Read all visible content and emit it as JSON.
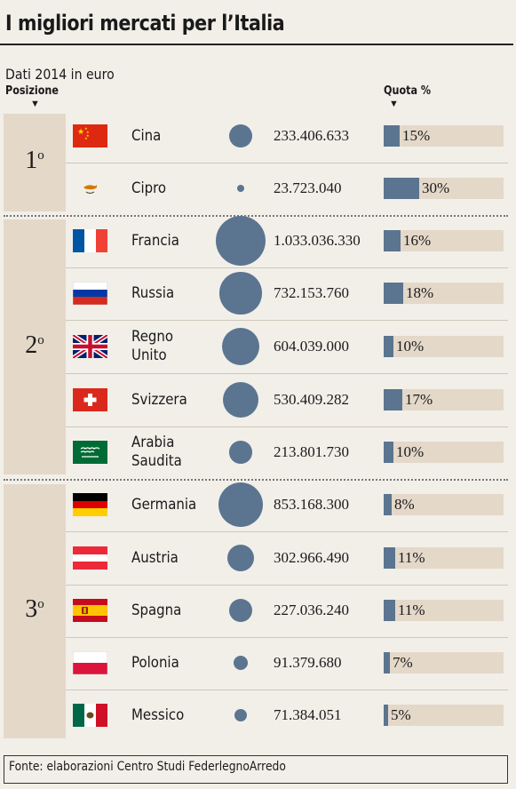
{
  "title": "I migliori mercati per l’Italia",
  "subtitle": "Dati 2014 in euro",
  "headers": {
    "position": "Posizione",
    "share": "Quota %",
    "arrow": "▼"
  },
  "footer": "Fonte: elaborazioni Centro Studi FederlegnoArredo",
  "colors": {
    "accent": "#5b7590",
    "panel": "#e4d8c9",
    "background": "#f2efe9"
  },
  "groups": [
    {
      "rank": "1",
      "ordinal": "o"
    },
    {
      "rank": "2",
      "ordinal": "o"
    },
    {
      "rank": "3",
      "ordinal": "o"
    }
  ],
  "chart_data": {
    "type": "table",
    "title": "I migliori mercati per l’Italia",
    "subtitle": "Dati 2014 in euro",
    "rows": [
      {
        "group": 1,
        "country": "Cina",
        "flag": "china-flag",
        "value": 233406633,
        "value_label": "233.406.633",
        "share": 15,
        "share_label": "15%"
      },
      {
        "group": 1,
        "country": "Cipro",
        "flag": "cyprus-flag",
        "value": 23723040,
        "value_label": "23.723.040",
        "share": 30,
        "share_label": "30%"
      },
      {
        "group": 2,
        "country": "Francia",
        "flag": "france-flag",
        "value": 1033036330,
        "value_label": "1.033.036.330",
        "share": 16,
        "share_label": "16%"
      },
      {
        "group": 2,
        "country": "Russia",
        "flag": "russia-flag",
        "value": 732153760,
        "value_label": "732.153.760",
        "share": 18,
        "share_label": "18%"
      },
      {
        "group": 2,
        "country": "Regno\nUnito",
        "flag": "uk-flag",
        "value": 604039000,
        "value_label": "604.039.000",
        "share": 10,
        "share_label": "10%"
      },
      {
        "group": 2,
        "country": "Svizzera",
        "flag": "switzerland-flag",
        "value": 530409282,
        "value_label": "530.409.282",
        "share": 17,
        "share_label": "17%"
      },
      {
        "group": 2,
        "country": "Arabia\nSaudita",
        "flag": "saudi-arabia-flag",
        "value": 213801730,
        "value_label": "213.801.730",
        "share": 10,
        "share_label": "10%"
      },
      {
        "group": 3,
        "country": "Germania",
        "flag": "germany-flag",
        "value": 853168300,
        "value_label": "853.168.300",
        "share": 8,
        "share_label": "8%"
      },
      {
        "group": 3,
        "country": "Austria",
        "flag": "austria-flag",
        "value": 302966490,
        "value_label": "302.966.490",
        "share": 11,
        "share_label": "11%"
      },
      {
        "group": 3,
        "country": "Spagna",
        "flag": "spain-flag",
        "value": 227036240,
        "value_label": "227.036.240",
        "share": 11,
        "share_label": "11%"
      },
      {
        "group": 3,
        "country": "Polonia",
        "flag": "poland-flag",
        "value": 91379680,
        "value_label": "91.379.680",
        "share": 7,
        "share_label": "7%"
      },
      {
        "group": 3,
        "country": "Messico",
        "flag": "mexico-flag",
        "value": 71384051,
        "value_label": "71.384.051",
        "share": 5,
        "share_label": "5%"
      }
    ]
  }
}
